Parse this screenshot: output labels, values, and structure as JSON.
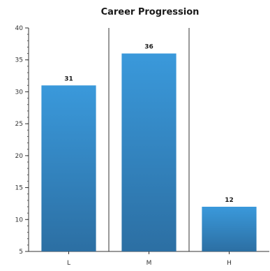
{
  "chart_data": {
    "type": "bar",
    "title": "Career Progression",
    "xlabel": "",
    "ylabel": "",
    "categories": [
      "L",
      "M",
      "H"
    ],
    "values": [
      31,
      36,
      12
    ],
    "data_labels": [
      "31",
      "36",
      "12"
    ],
    "ylim": [
      5,
      40
    ],
    "yticks": [
      5,
      10,
      15,
      20,
      25,
      30,
      35,
      40
    ],
    "minor_ytick_step": 1,
    "grid": false,
    "category_separators": true,
    "bar_color_top": "#3a99db",
    "bar_color_bottom": "#2c6fa3",
    "legend": "none"
  }
}
